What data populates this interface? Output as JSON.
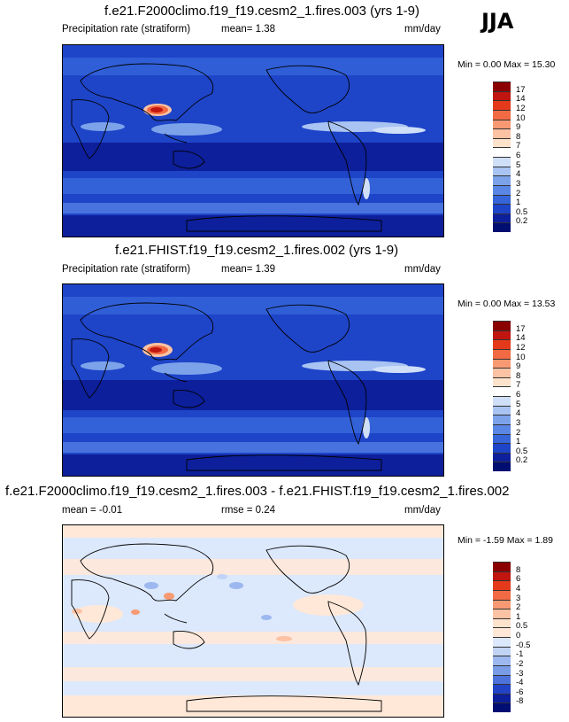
{
  "season": "JJA",
  "panels": [
    {
      "title": "f.e21.F2000climo.f19_f19.cesm2_1.fires.003 (yrs 1-9)",
      "field": "Precipitation rate (stratiform)",
      "stat": "mean=  1.38",
      "units": "mm/day",
      "minmax": "Min =   0.00 Max =  15.30",
      "colorbar": [
        "17",
        "14",
        "12",
        "10",
        "9",
        "8",
        "7",
        "6",
        "5",
        "4",
        "3",
        "2",
        "1",
        "0.5",
        "0.2"
      ],
      "colors": [
        "#8b0000",
        "#c1150f",
        "#e43a1b",
        "#f26a43",
        "#f79a73",
        "#fbc2a3",
        "#fde2cc",
        "#ffffff",
        "#cfdff8",
        "#a9c3f2",
        "#7ca3ea",
        "#5a86e5",
        "#3565d9",
        "#1e44c8",
        "#0d1f9a",
        "#000e72"
      ]
    },
    {
      "title": "f.e21.FHIST.f19_f19.cesm2_1.fires.002 (yrs 1-9)",
      "field": "Precipitation rate (stratiform)",
      "stat": "mean=  1.39",
      "units": "mm/day",
      "minmax": "Min =   0.00 Max =  13.53",
      "colorbar": [
        "17",
        "14",
        "12",
        "10",
        "9",
        "8",
        "7",
        "6",
        "5",
        "4",
        "3",
        "2",
        "1",
        "0.5",
        "0.2"
      ],
      "colors": [
        "#8b0000",
        "#c1150f",
        "#e43a1b",
        "#f26a43",
        "#f79a73",
        "#fbc2a3",
        "#fde2cc",
        "#ffffff",
        "#cfdff8",
        "#a9c3f2",
        "#7ca3ea",
        "#5a86e5",
        "#3565d9",
        "#1e44c8",
        "#0d1f9a",
        "#000e72"
      ]
    },
    {
      "title": "f.e21.F2000climo.f19_f19.cesm2_1.fires.003 - f.e21.FHIST.f19_f19.cesm2_1.fires.002",
      "field": "mean =  -0.01",
      "stat": "rmse =  0.24",
      "units": "mm/day",
      "minmax": "Min =  -1.59 Max =   1.89",
      "colorbar": [
        "8",
        "6",
        "4",
        "3",
        "2",
        "1",
        "0.5",
        "0",
        "-0.5",
        "-1",
        "-2",
        "-3",
        "-4",
        "-6",
        "-8"
      ],
      "colors": [
        "#8b0000",
        "#c1150f",
        "#e43a1b",
        "#f26a43",
        "#f79a73",
        "#fbc2a3",
        "#fde2cc",
        "#ffe8d8",
        "#dce8fb",
        "#c2d4f5",
        "#9cb8ef",
        "#7a9be6",
        "#4e72dc",
        "#2343c6",
        "#0d1f9a",
        "#000e72"
      ]
    }
  ]
}
